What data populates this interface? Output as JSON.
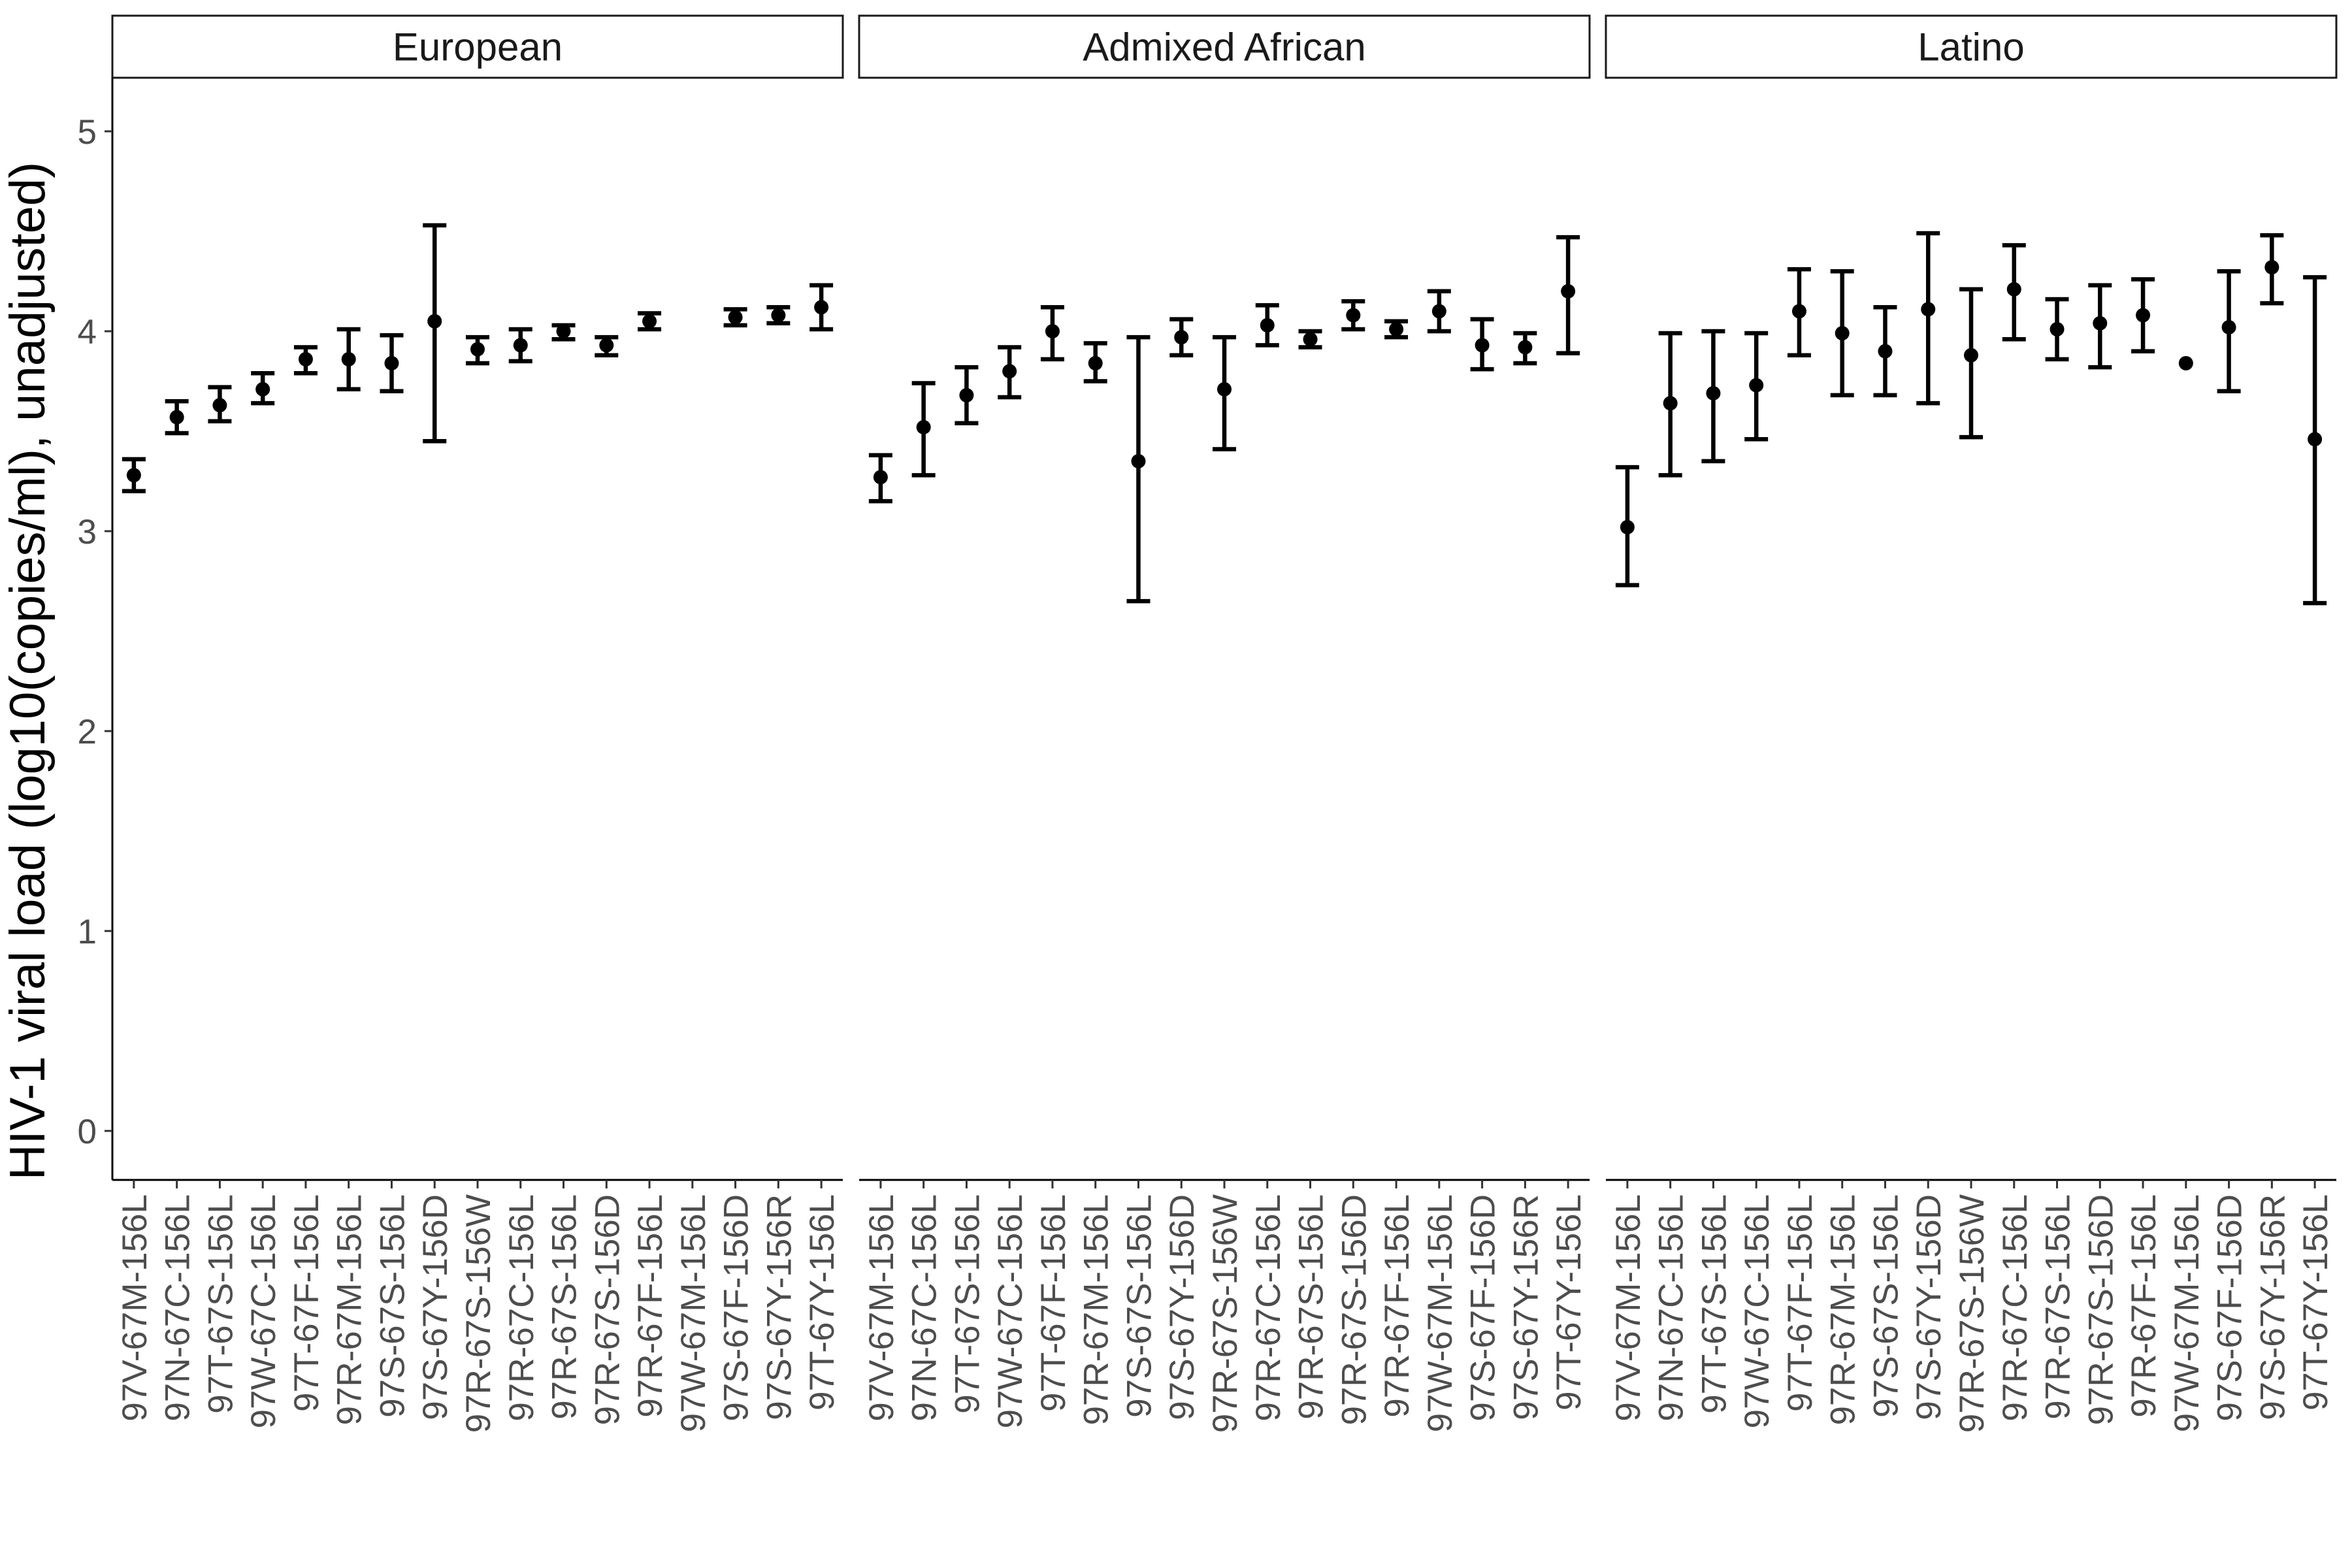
{
  "chart_data": {
    "type": "scatter",
    "subtype": "pointrange-facets",
    "ylabel": "HIV-1 viral load (log10(copies/ml), unadjusted)",
    "xlabel": "",
    "ylim": [
      -0.25,
      5.25
    ],
    "yticks": [
      0,
      1,
      2,
      3,
      4,
      5
    ],
    "grid": false,
    "categories": [
      "97V-67M-156L",
      "97N-67C-156L",
      "97T-67S-156L",
      "97W-67C-156L",
      "97T-67F-156L",
      "97R-67M-156L",
      "97S-67S-156L",
      "97S-67Y-156D",
      "97R-67S-156W",
      "97R-67C-156L",
      "97R-67S-156L",
      "97R-67S-156D",
      "97R-67F-156L",
      "97W-67M-156L",
      "97S-67F-156D",
      "97S-67Y-156R",
      "97T-67Y-156L"
    ],
    "panels": [
      {
        "name": "European",
        "points": [
          {
            "x": "97V-67M-156L",
            "y": 3.28,
            "lo": 3.2,
            "hi": 3.36
          },
          {
            "x": "97N-67C-156L",
            "y": 3.57,
            "lo": 3.49,
            "hi": 3.65
          },
          {
            "x": "97T-67S-156L",
            "y": 3.63,
            "lo": 3.55,
            "hi": 3.72
          },
          {
            "x": "97W-67C-156L",
            "y": 3.71,
            "lo": 3.64,
            "hi": 3.79
          },
          {
            "x": "97T-67F-156L",
            "y": 3.86,
            "lo": 3.79,
            "hi": 3.92
          },
          {
            "x": "97R-67M-156L",
            "y": 3.86,
            "lo": 3.71,
            "hi": 4.01
          },
          {
            "x": "97S-67S-156L",
            "y": 3.84,
            "lo": 3.7,
            "hi": 3.98
          },
          {
            "x": "97S-67Y-156D",
            "y": 4.05,
            "lo": 3.45,
            "hi": 4.53
          },
          {
            "x": "97R-67S-156W",
            "y": 3.91,
            "lo": 3.84,
            "hi": 3.97
          },
          {
            "x": "97R-67C-156L",
            "y": 3.93,
            "lo": 3.85,
            "hi": 4.01
          },
          {
            "x": "97R-67S-156L",
            "y": 4.0,
            "lo": 3.96,
            "hi": 4.03
          },
          {
            "x": "97R-67S-156D",
            "y": 3.93,
            "lo": 3.88,
            "hi": 3.97
          },
          {
            "x": "97R-67F-156L",
            "y": 4.05,
            "lo": 4.01,
            "hi": 4.09
          },
          {
            "x": "97S-67F-156D",
            "y": 4.07,
            "lo": 4.03,
            "hi": 4.11
          },
          {
            "x": "97S-67Y-156R",
            "y": 4.08,
            "lo": 4.04,
            "hi": 4.12
          },
          {
            "x": "97T-67Y-156L",
            "y": 4.12,
            "lo": 4.01,
            "hi": 4.23
          }
        ]
      },
      {
        "name": "Admixed African",
        "points": [
          {
            "x": "97V-67M-156L",
            "y": 3.27,
            "lo": 3.15,
            "hi": 3.38
          },
          {
            "x": "97N-67C-156L",
            "y": 3.52,
            "lo": 3.28,
            "hi": 3.74
          },
          {
            "x": "97T-67S-156L",
            "y": 3.68,
            "lo": 3.54,
            "hi": 3.82
          },
          {
            "x": "97W-67C-156L",
            "y": 3.8,
            "lo": 3.67,
            "hi": 3.92
          },
          {
            "x": "97T-67F-156L",
            "y": 4.0,
            "lo": 3.86,
            "hi": 4.12
          },
          {
            "x": "97R-67M-156L",
            "y": 3.84,
            "lo": 3.75,
            "hi": 3.94
          },
          {
            "x": "97S-67S-156L",
            "y": 3.35,
            "lo": 2.65,
            "hi": 3.97
          },
          {
            "x": "97S-67Y-156D",
            "y": 3.97,
            "lo": 3.88,
            "hi": 4.06
          },
          {
            "x": "97R-67S-156W",
            "y": 3.71,
            "lo": 3.41,
            "hi": 3.97
          },
          {
            "x": "97R-67C-156L",
            "y": 4.03,
            "lo": 3.93,
            "hi": 4.13
          },
          {
            "x": "97R-67S-156L",
            "y": 3.96,
            "lo": 3.92,
            "hi": 4.0
          },
          {
            "x": "97R-67S-156D",
            "y": 4.08,
            "lo": 4.01,
            "hi": 4.15
          },
          {
            "x": "97R-67F-156L",
            "y": 4.01,
            "lo": 3.97,
            "hi": 4.05
          },
          {
            "x": "97W-67M-156L",
            "y": 4.1,
            "lo": 4.0,
            "hi": 4.2
          },
          {
            "x": "97S-67F-156D",
            "y": 3.93,
            "lo": 3.81,
            "hi": 4.06
          },
          {
            "x": "97S-67Y-156R",
            "y": 3.92,
            "lo": 3.84,
            "hi": 3.99
          },
          {
            "x": "97T-67Y-156L",
            "y": 4.2,
            "lo": 3.89,
            "hi": 4.47
          }
        ]
      },
      {
        "name": "Latino",
        "points": [
          {
            "x": "97V-67M-156L",
            "y": 3.02,
            "lo": 2.73,
            "hi": 3.32
          },
          {
            "x": "97N-67C-156L",
            "y": 3.64,
            "lo": 3.28,
            "hi": 3.99
          },
          {
            "x": "97T-67S-156L",
            "y": 3.69,
            "lo": 3.35,
            "hi": 4.0
          },
          {
            "x": "97W-67C-156L",
            "y": 3.73,
            "lo": 3.46,
            "hi": 3.99
          },
          {
            "x": "97T-67F-156L",
            "y": 4.1,
            "lo": 3.88,
            "hi": 4.31
          },
          {
            "x": "97R-67M-156L",
            "y": 3.99,
            "lo": 3.68,
            "hi": 4.3
          },
          {
            "x": "97S-67S-156L",
            "y": 3.9,
            "lo": 3.68,
            "hi": 4.12
          },
          {
            "x": "97S-67Y-156D",
            "y": 4.11,
            "lo": 3.64,
            "hi": 4.49
          },
          {
            "x": "97R-67S-156W",
            "y": 3.88,
            "lo": 3.47,
            "hi": 4.21
          },
          {
            "x": "97R-67C-156L",
            "y": 4.21,
            "lo": 3.96,
            "hi": 4.43
          },
          {
            "x": "97R-67S-156L",
            "y": 4.01,
            "lo": 3.86,
            "hi": 4.16
          },
          {
            "x": "97R-67S-156D",
            "y": 4.04,
            "lo": 3.82,
            "hi": 4.23
          },
          {
            "x": "97R-67F-156L",
            "y": 4.08,
            "lo": 3.9,
            "hi": 4.26
          },
          {
            "x": "97W-67M-156L",
            "y": 3.84,
            "lo": 3.84,
            "hi": 3.84
          },
          {
            "x": "97S-67F-156D",
            "y": 4.02,
            "lo": 3.7,
            "hi": 4.3
          },
          {
            "x": "97S-67Y-156R",
            "y": 4.32,
            "lo": 4.14,
            "hi": 4.48
          },
          {
            "x": "97T-67Y-156L",
            "y": 3.46,
            "lo": 2.64,
            "hi": 4.27
          }
        ]
      }
    ]
  }
}
